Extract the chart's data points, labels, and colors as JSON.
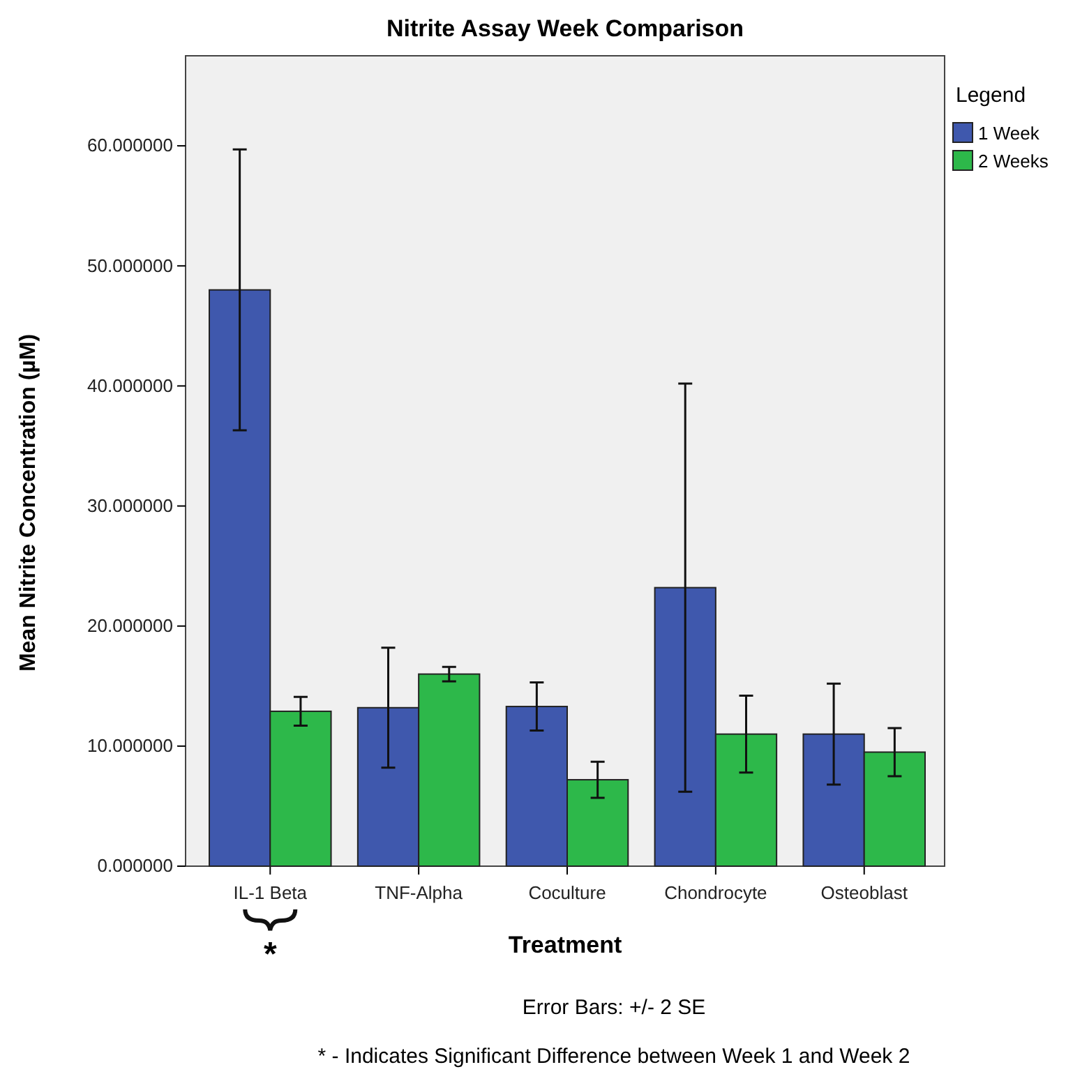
{
  "chart_data": {
    "type": "bar",
    "title": "Nitrite Assay Week Comparison",
    "xlabel": "Treatment",
    "ylabel": "Mean Nitrite Concentration (µM)",
    "legend_title": "Legend",
    "legend": "top right",
    "categories": [
      "IL-1 Beta",
      "TNF-Alpha",
      "Coculture",
      "Chondrocyte",
      "Osteoblast"
    ],
    "series": [
      {
        "name": "1 Week",
        "color": "#3f58ad",
        "values": [
          48.0,
          13.2,
          13.3,
          23.2,
          11.0
        ],
        "errors": [
          11.7,
          5.0,
          2.0,
          17.0,
          4.2
        ]
      },
      {
        "name": "2 Weeks",
        "color": "#2db84a",
        "values": [
          12.9,
          16.0,
          7.2,
          11.0,
          9.5
        ],
        "errors": [
          1.2,
          0.6,
          1.5,
          3.2,
          2.0
        ]
      }
    ],
    "ylim": [
      0,
      67.5
    ],
    "yticks": [
      {
        "value": 0,
        "label": "0.000000"
      },
      {
        "value": 10,
        "label": "10.000000"
      },
      {
        "value": 20,
        "label": "20.000000"
      },
      {
        "value": 30,
        "label": "30.000000"
      },
      {
        "value": 40,
        "label": "40.000000"
      },
      {
        "value": 50,
        "label": "50.000000"
      },
      {
        "value": 60,
        "label": "60.000000"
      }
    ],
    "grid": false,
    "annotations": [
      "*",
      "Error Bars: +/- 2 SE",
      "* - Indicates Significant Difference between Week 1 and Week 2"
    ]
  }
}
